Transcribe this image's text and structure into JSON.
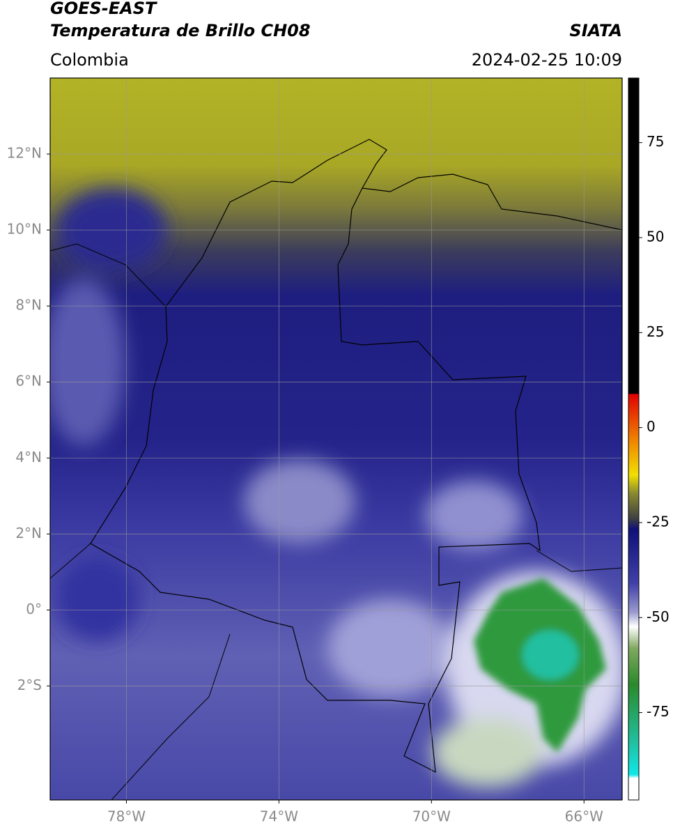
{
  "header": {
    "title": "GOES-EAST",
    "subtitle": "Temperatura de Brillo CH08",
    "region": "Colombia",
    "source": "SIATA",
    "datetime": "2024-02-25 10:09"
  },
  "map": {
    "xlim": [
      -80,
      -65
    ],
    "ylim": [
      -5,
      14
    ],
    "xticks": [
      {
        "value": -78,
        "label": "78°W"
      },
      {
        "value": -74,
        "label": "74°W"
      },
      {
        "value": -70,
        "label": "70°W"
      },
      {
        "value": -66,
        "label": "66°W"
      }
    ],
    "yticks": [
      {
        "value": 12,
        "label": "12°N"
      },
      {
        "value": 10,
        "label": "10°N"
      },
      {
        "value": 8,
        "label": "8°N"
      },
      {
        "value": 6,
        "label": "6°N"
      },
      {
        "value": 4,
        "label": "4°N"
      },
      {
        "value": 2,
        "label": "2°N"
      },
      {
        "value": 0,
        "label": "0°"
      },
      {
        "value": -2,
        "label": "2°S"
      }
    ],
    "grid": true
  },
  "colorbar": {
    "lim": [
      -98,
      92
    ],
    "ticks": [
      75,
      50,
      25,
      0,
      -25,
      -50,
      -75
    ]
  }
}
